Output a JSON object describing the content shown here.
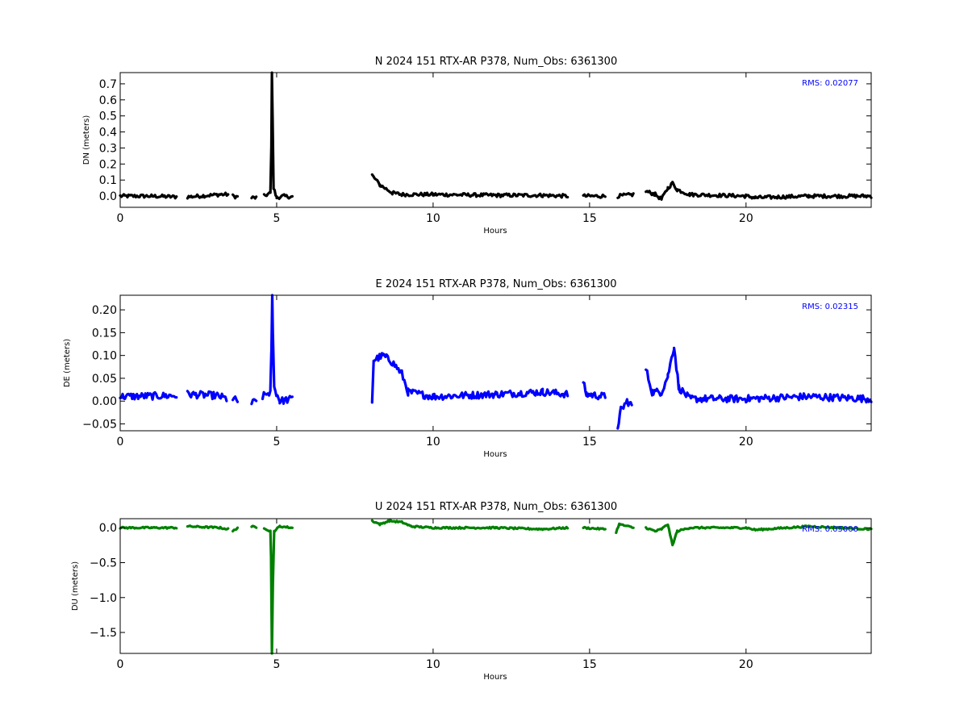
{
  "figure": {
    "x_label": "Hours",
    "x_ticks": [
      0,
      5,
      10,
      15,
      20
    ]
  },
  "chart_data": [
    {
      "type": "line",
      "title": "N 2024 151 RTX-AR  P378, Num_Obs: 6361300",
      "xlabel": "Hours",
      "ylabel": "DN (meters)",
      "xlim": [
        0,
        24
      ],
      "ylim": [
        -0.07,
        0.77
      ],
      "yticks": [
        0.0,
        0.1,
        0.2,
        0.3,
        0.4,
        0.5,
        0.6,
        0.7
      ],
      "ytick_labels": [
        "0.0",
        "0.1",
        "0.2",
        "0.3",
        "0.4",
        "0.5",
        "0.6",
        "0.7"
      ],
      "rms_text": "RMS:  0.02077",
      "color": "#000000",
      "noise": 0.011,
      "segments": [
        {
          "points": [
            [
              0.0,
              0.0
            ],
            [
              1.0,
              0.0
            ],
            [
              1.8,
              -0.005
            ]
          ]
        },
        {
          "points": [
            [
              2.15,
              -0.005
            ],
            [
              3.2,
              0.01
            ],
            [
              3.45,
              0.01
            ]
          ]
        },
        {
          "points": [
            [
              3.6,
              0.0
            ],
            [
              3.75,
              -0.005
            ]
          ]
        },
        {
          "points": [
            [
              4.2,
              -0.01
            ],
            [
              4.35,
              -0.01
            ]
          ]
        },
        {
          "points": [
            [
              4.6,
              0.0
            ],
            [
              4.8,
              0.02
            ],
            [
              4.83,
              0.3
            ],
            [
              4.85,
              0.76
            ],
            [
              4.87,
              0.5
            ],
            [
              4.9,
              0.05
            ],
            [
              5.0,
              -0.01
            ],
            [
              5.2,
              0.0
            ],
            [
              5.5,
              -0.005
            ]
          ]
        },
        {
          "points": [
            [
              8.05,
              0.13
            ],
            [
              8.3,
              0.07
            ],
            [
              8.7,
              0.02
            ],
            [
              9.0,
              0.01
            ],
            [
              10.0,
              0.01
            ],
            [
              12.0,
              0.005
            ],
            [
              13.5,
              0.005
            ],
            [
              14.3,
              0.0
            ]
          ]
        },
        {
          "points": [
            [
              14.8,
              0.0
            ],
            [
              15.5,
              0.0
            ]
          ]
        },
        {
          "points": [
            [
              15.9,
              0.0
            ],
            [
              16.4,
              0.01
            ]
          ]
        },
        {
          "points": [
            [
              16.8,
              0.03
            ],
            [
              17.1,
              0.01
            ],
            [
              17.3,
              -0.02
            ],
            [
              17.5,
              0.05
            ],
            [
              17.65,
              0.08
            ],
            [
              17.8,
              0.04
            ],
            [
              18.2,
              0.01
            ],
            [
              20.0,
              0.0
            ],
            [
              20.3,
              -0.01
            ],
            [
              22.0,
              0.0
            ],
            [
              24.0,
              0.0
            ]
          ]
        }
      ]
    },
    {
      "type": "line",
      "title": "E 2024 151 RTX-AR  P378, Num_Obs: 6361300",
      "xlabel": "Hours",
      "ylabel": "DE (meters)",
      "xlim": [
        0,
        24
      ],
      "ylim": [
        -0.065,
        0.232
      ],
      "yticks": [
        -0.05,
        0.0,
        0.05,
        0.1,
        0.15,
        0.2
      ],
      "ytick_labels": [
        "−0.05",
        "0.00",
        "0.05",
        "0.10",
        "0.15",
        "0.20"
      ],
      "rms_text": "RMS:  0.02315",
      "color": "#0000ff",
      "noise": 0.008,
      "segments": [
        {
          "points": [
            [
              0.0,
              0.01
            ],
            [
              1.8,
              0.012
            ]
          ]
        },
        {
          "points": [
            [
              2.15,
              0.015
            ],
            [
              3.1,
              0.012
            ],
            [
              3.4,
              0.005
            ]
          ]
        },
        {
          "points": [
            [
              3.6,
              0.005
            ],
            [
              3.75,
              0.0
            ]
          ]
        },
        {
          "points": [
            [
              4.2,
              -0.005
            ],
            [
              4.35,
              0.0
            ]
          ]
        },
        {
          "points": [
            [
              4.55,
              0.01
            ],
            [
              4.8,
              0.02
            ],
            [
              4.83,
              0.1
            ],
            [
              4.86,
              0.23
            ],
            [
              4.88,
              0.15
            ],
            [
              4.92,
              0.03
            ],
            [
              5.1,
              0.0
            ],
            [
              5.5,
              0.005
            ]
          ]
        },
        {
          "points": [
            [
              8.05,
              0.0
            ],
            [
              8.1,
              0.09
            ],
            [
              8.4,
              0.1
            ],
            [
              8.7,
              0.085
            ],
            [
              9.0,
              0.06
            ],
            [
              9.2,
              0.02
            ],
            [
              10.0,
              0.01
            ],
            [
              12.0,
              0.015
            ],
            [
              13.5,
              0.02
            ],
            [
              14.3,
              0.015
            ]
          ]
        },
        {
          "points": [
            [
              14.8,
              0.04
            ],
            [
              14.9,
              0.015
            ],
            [
              15.5,
              0.01
            ]
          ]
        },
        {
          "points": [
            [
              15.9,
              -0.055
            ],
            [
              16.0,
              -0.02
            ],
            [
              16.2,
              0.0
            ],
            [
              16.35,
              -0.01
            ]
          ]
        },
        {
          "points": [
            [
              16.8,
              0.07
            ],
            [
              17.0,
              0.02
            ],
            [
              17.3,
              0.02
            ],
            [
              17.5,
              0.055
            ],
            [
              17.7,
              0.12
            ],
            [
              17.85,
              0.03
            ],
            [
              18.2,
              0.005
            ],
            [
              20.0,
              0.005
            ],
            [
              22.0,
              0.01
            ],
            [
              24.0,
              0.005
            ]
          ]
        }
      ]
    },
    {
      "type": "line",
      "title": "U 2024 151 RTX-AR  P378, Num_Obs: 6361300",
      "xlabel": "Hours",
      "ylabel": "DU (meters)",
      "xlim": [
        0,
        24
      ],
      "ylim": [
        -1.8,
        0.13
      ],
      "yticks": [
        0.0,
        -0.5,
        -1.0,
        -1.5
      ],
      "ytick_labels": [
        "0.0",
        "−0.5",
        "−1.0",
        "−1.5"
      ],
      "rms_text": "RMS:  0.05000",
      "color": "#008000",
      "noise": 0.012,
      "segments": [
        {
          "points": [
            [
              0.0,
              0.0
            ],
            [
              1.0,
              0.0
            ],
            [
              1.8,
              0.0
            ]
          ]
        },
        {
          "points": [
            [
              2.15,
              0.02
            ],
            [
              3.2,
              0.0
            ],
            [
              3.45,
              -0.02
            ]
          ]
        },
        {
          "points": [
            [
              3.6,
              -0.05
            ],
            [
              3.75,
              0.0
            ]
          ]
        },
        {
          "points": [
            [
              4.2,
              0.02
            ],
            [
              4.35,
              0.0
            ]
          ]
        },
        {
          "points": [
            [
              4.6,
              0.0
            ],
            [
              4.8,
              -0.05
            ],
            [
              4.82,
              -0.4
            ],
            [
              4.85,
              -1.8
            ],
            [
              4.88,
              -0.8
            ],
            [
              4.92,
              -0.05
            ],
            [
              5.1,
              0.02
            ],
            [
              5.5,
              0.0
            ]
          ]
        },
        {
          "points": [
            [
              8.05,
              0.1
            ],
            [
              8.3,
              0.05
            ],
            [
              8.6,
              0.1
            ],
            [
              9.0,
              0.08
            ],
            [
              9.3,
              0.02
            ],
            [
              10.0,
              0.0
            ],
            [
              12.0,
              0.0
            ],
            [
              13.5,
              -0.02
            ],
            [
              14.3,
              0.0
            ]
          ]
        },
        {
          "points": [
            [
              14.8,
              0.0
            ],
            [
              15.5,
              -0.02
            ]
          ]
        },
        {
          "points": [
            [
              15.85,
              -0.06
            ],
            [
              15.95,
              0.05
            ],
            [
              16.4,
              0.0
            ]
          ]
        },
        {
          "points": [
            [
              16.8,
              0.0
            ],
            [
              17.1,
              -0.05
            ],
            [
              17.3,
              -0.02
            ],
            [
              17.5,
              0.05
            ],
            [
              17.65,
              -0.25
            ],
            [
              17.8,
              -0.05
            ],
            [
              18.2,
              0.0
            ],
            [
              20.0,
              0.0
            ],
            [
              20.3,
              -0.03
            ],
            [
              22.0,
              0.02
            ],
            [
              24.0,
              -0.02
            ]
          ]
        }
      ]
    }
  ]
}
